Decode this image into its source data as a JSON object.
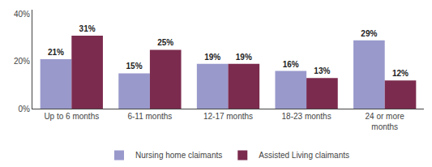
{
  "chart_data": {
    "type": "bar",
    "categories": [
      "Up to 6 months",
      "6-11 months",
      "12-17 months",
      "18-23 months",
      "24 or more\nmonths"
    ],
    "series": [
      {
        "name": "Nursing home claimants",
        "color": "#9999cc",
        "values": [
          21,
          15,
          19,
          16,
          29
        ],
        "value_labels": [
          "21%",
          "15%",
          "19%",
          "16%",
          "29%"
        ]
      },
      {
        "name": "Assisted Living claimants",
        "color": "#7b2b4e",
        "values": [
          31,
          25,
          19,
          13,
          12
        ],
        "value_labels": [
          "31%",
          "25%",
          "19%",
          "13%",
          "12%"
        ]
      }
    ],
    "ylim": [
      0,
      42
    ],
    "yticks": [
      {
        "value": 0,
        "label": "0%"
      },
      {
        "value": 20,
        "label": "20%"
      },
      {
        "value": 40,
        "label": "40%"
      }
    ],
    "grid": false,
    "legend": "lower center",
    "data_labels": true
  }
}
